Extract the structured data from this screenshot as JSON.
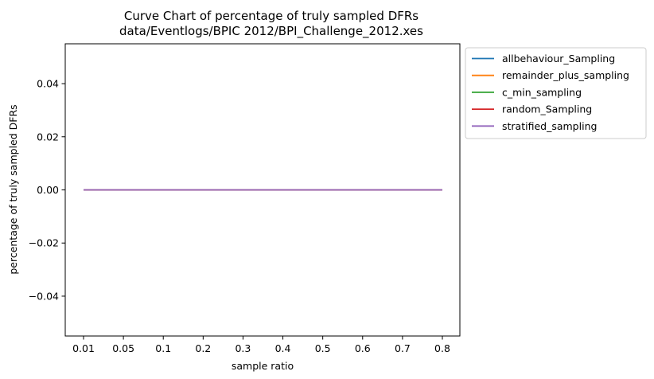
{
  "chart_data": {
    "type": "line",
    "title": "Curve Chart of percentage of truly sampled DFRs",
    "subtitle": "data/Eventlogs/BPIC 2012/BPI_Challenge_2012.xes",
    "xlabel": "sample ratio",
    "ylabel": "percentage of truly sampled DFRs",
    "categories": [
      "0.01",
      "0.05",
      "0.1",
      "0.2",
      "0.3",
      "0.4",
      "0.5",
      "0.6",
      "0.7",
      "0.8"
    ],
    "ylim": [
      -0.055,
      0.055
    ],
    "yticks": [
      -0.04,
      -0.02,
      0.0,
      0.02,
      0.04
    ],
    "ytick_labels": [
      "−0.04",
      "−0.02",
      "0.00",
      "0.02",
      "0.04"
    ],
    "grid": false,
    "legend_position": "outside-top-right",
    "series": [
      {
        "name": "allbehaviour_Sampling",
        "color": "#1f77b4",
        "values": [
          0,
          0,
          0,
          0,
          0,
          0,
          0,
          0,
          0,
          0
        ]
      },
      {
        "name": "remainder_plus_sampling",
        "color": "#ff7f0e",
        "values": [
          0,
          0,
          0,
          0,
          0,
          0,
          0,
          0,
          0,
          0
        ]
      },
      {
        "name": "c_min_sampling",
        "color": "#2ca02c",
        "values": [
          0,
          0,
          0,
          0,
          0,
          0,
          0,
          0,
          0,
          0
        ]
      },
      {
        "name": "random_Sampling",
        "color": "#d62728",
        "values": [
          0,
          0,
          0,
          0,
          0,
          0,
          0,
          0,
          0,
          0
        ]
      },
      {
        "name": "stratified_sampling",
        "color": "#9467bd",
        "values": [
          0,
          0,
          0,
          0,
          0,
          0,
          0,
          0,
          0,
          0
        ]
      }
    ]
  }
}
